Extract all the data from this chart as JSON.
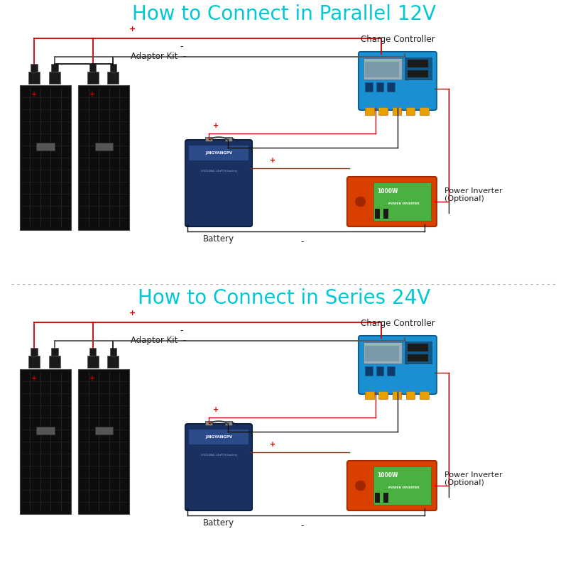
{
  "title1": "How to Connect in Parallel 12V",
  "title2": "How to Connect in Series 24V",
  "title_color": "#00c8d4",
  "title_fontsize": 20,
  "bg_color": "#ffffff",
  "wire_red": "#cc0000",
  "wire_black": "#111111",
  "wire_gray": "#555555",
  "wire_lw": 1.3,
  "plus_color": "#cc0000",
  "minus_color": "#111111",
  "label_color": "#222222",
  "label_fontsize": 8.5,
  "adaptor_label": "Adaptor Kit",
  "battery_label": "Battery",
  "charge_label": "Charge Controller",
  "inverter_label": "Power Inverter\n(Optional)"
}
